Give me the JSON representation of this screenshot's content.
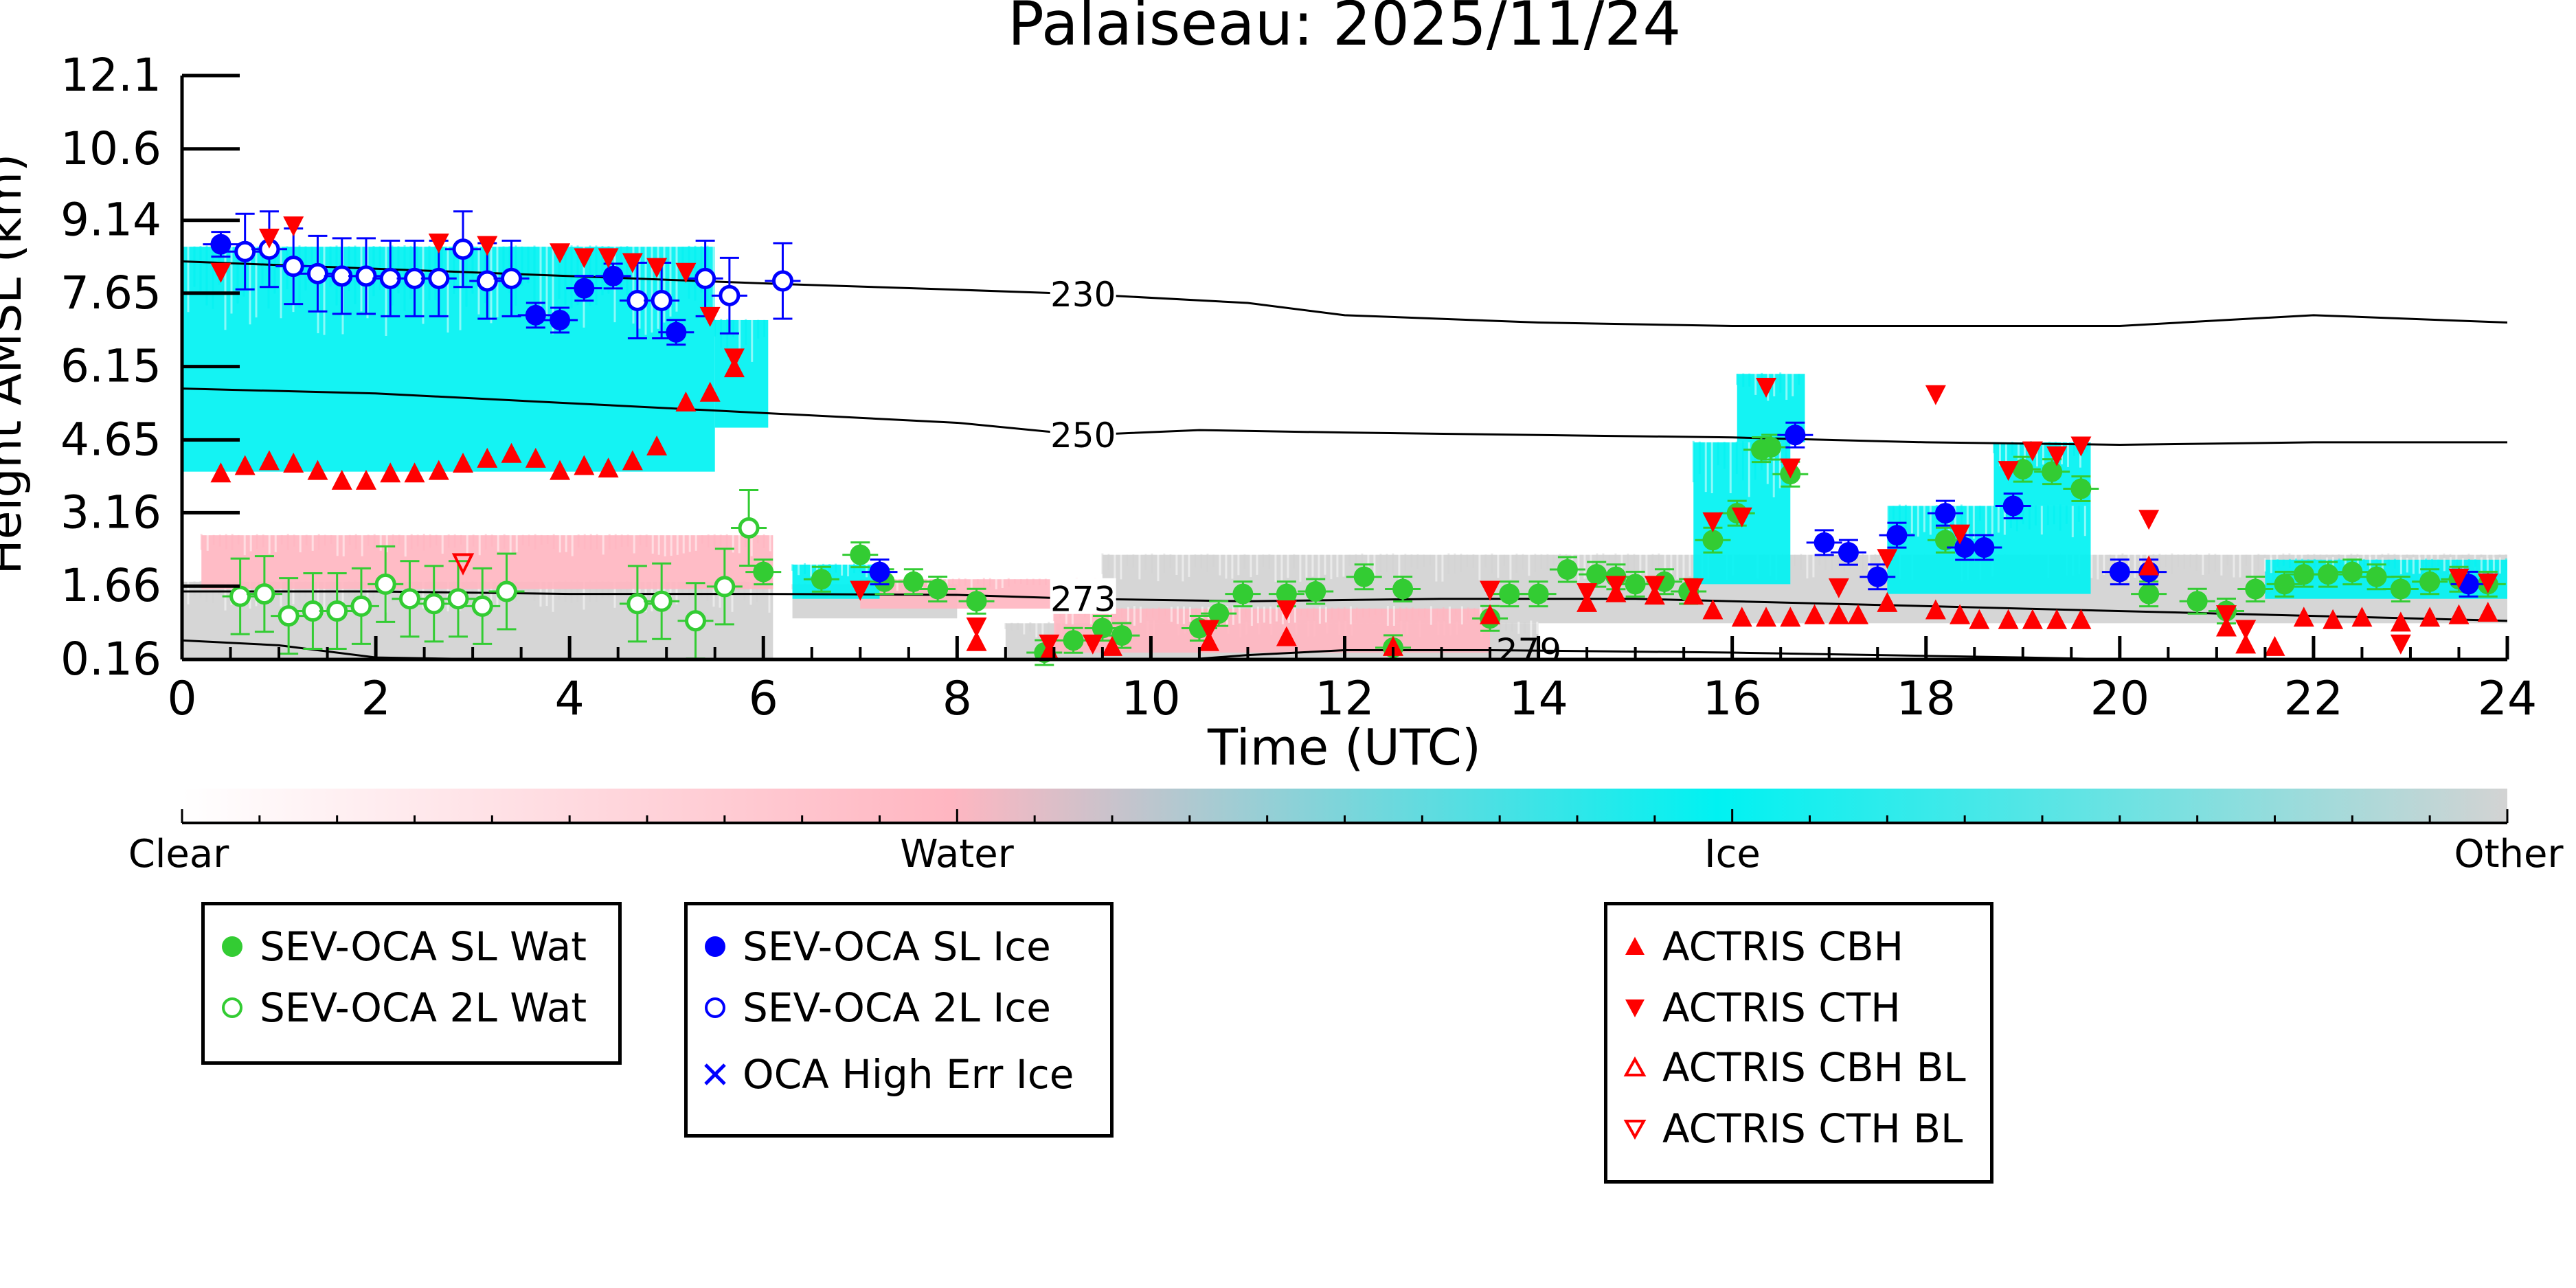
{
  "chart_data": {
    "type": "scatter",
    "title": "Palaiseau: 2025/11/24",
    "xlabel": "Time (UTC)",
    "ylabel": "Height AMSL (km)",
    "xlim": [
      0,
      24
    ],
    "ylim": [
      0.16,
      12.1
    ],
    "x_ticks": [
      "0",
      "2",
      "4",
      "6",
      "8",
      "10",
      "12",
      "14",
      "16",
      "18",
      "20",
      "22",
      "24"
    ],
    "y_ticks": [
      "0.16",
      "1.66",
      "3.16",
      "4.65",
      "6.15",
      "7.65",
      "9.14",
      "10.6",
      "12.1"
    ],
    "colorbar": {
      "labels": [
        "Clear",
        "Water",
        "Ice",
        "Other"
      ],
      "colors": {
        "Clear": "#ffffff",
        "Water": "#ffb6c1",
        "Ice": "#00f2f2",
        "Other": "#d3d3d3"
      }
    },
    "isotherms": [
      {
        "label": "230",
        "x": [
          0,
          2,
          4,
          6,
          8,
          9.3,
          11,
          12,
          14,
          16,
          18,
          20,
          22,
          24
        ],
        "y": [
          8.3,
          8.15,
          8.0,
          7.85,
          7.72,
          7.63,
          7.45,
          7.2,
          7.05,
          6.98,
          6.98,
          6.98,
          7.2,
          7.05
        ]
      },
      {
        "label": "250",
        "x": [
          0,
          2,
          4,
          6,
          8,
          9.3,
          10.5,
          12,
          14,
          16,
          18,
          20,
          22,
          24
        ],
        "y": [
          5.7,
          5.6,
          5.4,
          5.2,
          5.0,
          4.75,
          4.85,
          4.8,
          4.75,
          4.7,
          4.6,
          4.55,
          4.6,
          4.6
        ]
      },
      {
        "label": "273",
        "x": [
          0,
          2,
          4,
          6,
          8,
          9.3,
          11,
          13,
          15,
          17,
          19,
          21,
          22,
          24
        ],
        "y": [
          1.55,
          1.55,
          1.5,
          1.5,
          1.48,
          1.4,
          1.35,
          1.4,
          1.4,
          1.3,
          1.2,
          1.1,
          1.05,
          0.95
        ]
      },
      {
        "label": "279",
        "x": [
          0,
          1,
          2,
          5,
          8,
          9,
          10,
          11,
          12,
          13.5,
          16,
          19,
          20
        ],
        "y": [
          0.55,
          0.45,
          0.2,
          0.1,
          0.05,
          0.05,
          0.1,
          0.25,
          0.35,
          0.35,
          0.3,
          0.2,
          0.16
        ]
      }
    ],
    "cloud_regions": {
      "Ice": [
        {
          "x": [
            0,
            5.5
          ],
          "y": [
            4.0,
            8.6
          ]
        },
        {
          "x": [
            5.5,
            6.05
          ],
          "y": [
            4.9,
            7.1
          ]
        },
        {
          "x": [
            15.6,
            16.6
          ],
          "y": [
            1.7,
            4.6
          ]
        },
        {
          "x": [
            16.05,
            16.75
          ],
          "y": [
            4.6,
            6.0
          ]
        },
        {
          "x": [
            17.6,
            19.7
          ],
          "y": [
            1.5,
            3.3
          ]
        },
        {
          "x": [
            18.7,
            19.7
          ],
          "y": [
            3.3,
            4.6
          ]
        },
        {
          "x": [
            21.5,
            24
          ],
          "y": [
            1.4,
            2.2
          ]
        },
        {
          "x": [
            6.3,
            7.2
          ],
          "y": [
            1.4,
            2.1
          ]
        }
      ],
      "Water": [
        {
          "x": [
            0.2,
            6.1
          ],
          "y": [
            1.6,
            2.7
          ]
        },
        {
          "x": [
            7.0,
            9.5
          ],
          "y": [
            1.2,
            1.8
          ]
        },
        {
          "x": [
            9.0,
            13.5
          ],
          "y": [
            0.3,
            1.2
          ]
        }
      ],
      "Other": [
        {
          "x": [
            0,
            6.1
          ],
          "y": [
            0.16,
            1.75
          ]
        },
        {
          "x": [
            6.3,
            8.0
          ],
          "y": [
            1.0,
            1.7
          ]
        },
        {
          "x": [
            9.5,
            24
          ],
          "y": [
            0.9,
            2.3
          ]
        },
        {
          "x": [
            8.5,
            14
          ],
          "y": [
            0.16,
            0.9
          ]
        }
      ]
    },
    "series": [
      {
        "name": "SEV-OCA SL Wat",
        "x": [
          6.0,
          6.6,
          7.0,
          7.25,
          7.55,
          7.8,
          8.2,
          8.9,
          9.2,
          9.5,
          9.7,
          10.5,
          10.7,
          10.95,
          11.4,
          11.7,
          12.2,
          12.5,
          12.6,
          13.5,
          13.7,
          14.0,
          14.3,
          14.6,
          14.8,
          15.0,
          15.3,
          15.55,
          15.8,
          16.05,
          16.3,
          16.4,
          16.6,
          18.2,
          19.0,
          19.3,
          19.6,
          20.3,
          20.8,
          21.1,
          21.4,
          21.7,
          21.9,
          22.15,
          22.4,
          22.65,
          22.9,
          23.2,
          23.5,
          23.8
        ],
        "y": [
          1.95,
          1.8,
          2.3,
          1.75,
          1.75,
          1.6,
          1.35,
          0.3,
          0.55,
          0.8,
          0.65,
          0.8,
          1.1,
          1.5,
          1.5,
          1.55,
          1.85,
          0.4,
          1.6,
          1.0,
          1.5,
          1.5,
          2.0,
          1.9,
          1.85,
          1.7,
          1.75,
          1.55,
          2.6,
          3.15,
          4.45,
          4.5,
          3.95,
          2.6,
          4.05,
          4.0,
          3.65,
          1.5,
          1.35,
          1.15,
          1.6,
          1.7,
          1.9,
          1.9,
          1.95,
          1.85,
          1.6,
          1.75,
          1.8,
          1.7
        ],
        "color": "#33cc33",
        "marker": "filled-circle"
      },
      {
        "name": "SEV-OCA 2L Wat",
        "x": [
          0.6,
          0.85,
          1.1,
          1.35,
          1.6,
          1.85,
          2.1,
          2.35,
          2.6,
          2.85,
          3.1,
          3.35,
          4.7,
          4.95,
          5.3,
          5.6,
          5.85
        ],
        "y": [
          1.45,
          1.5,
          1.05,
          1.15,
          1.15,
          1.25,
          1.7,
          1.4,
          1.3,
          1.4,
          1.25,
          1.55,
          1.3,
          1.35,
          0.95,
          1.65,
          2.85
        ],
        "color": "#33cc33",
        "marker": "open-circle"
      },
      {
        "name": "SEV-OCA SL Ice",
        "x": [
          0.4,
          3.65,
          3.9,
          4.15,
          4.45,
          5.1,
          7.2,
          16.65,
          16.95,
          17.2,
          17.5,
          17.7,
          18.2,
          18.4,
          18.6,
          18.9,
          20.0,
          20.3,
          23.6
        ],
        "y": [
          8.65,
          7.2,
          7.1,
          7.75,
          8.0,
          6.85,
          1.95,
          4.75,
          2.55,
          2.35,
          1.85,
          2.7,
          3.15,
          2.45,
          2.45,
          3.3,
          1.95,
          1.95,
          1.7
        ],
        "color": "#0000ff",
        "marker": "filled-circle"
      },
      {
        "name": "SEV-OCA 2L Ice",
        "x": [
          0.65,
          0.9,
          1.15,
          1.4,
          1.65,
          1.9,
          2.15,
          2.4,
          2.65,
          2.9,
          3.15,
          3.4,
          4.7,
          4.95,
          5.4,
          5.65,
          6.2
        ],
        "y": [
          8.5,
          8.55,
          8.2,
          8.05,
          8.0,
          8.0,
          7.95,
          7.95,
          7.95,
          8.55,
          7.9,
          7.95,
          7.5,
          7.5,
          7.95,
          7.6,
          7.9
        ],
        "color": "#0000ff",
        "marker": "open-circle"
      },
      {
        "name": "OCA High Err Ice",
        "x": [],
        "y": [],
        "color": "#0000ff",
        "marker": "x"
      },
      {
        "name": "ACTRIS CBH",
        "x": [
          0.4,
          0.65,
          0.9,
          1.15,
          1.4,
          1.65,
          1.9,
          2.15,
          2.4,
          2.65,
          2.9,
          3.15,
          3.4,
          3.65,
          3.9,
          4.15,
          4.4,
          4.65,
          4.9,
          5.2,
          5.45,
          5.7,
          8.2,
          8.95,
          9.6,
          10.6,
          11.4,
          12.5,
          13.5,
          14.5,
          14.8,
          15.2,
          15.6,
          15.8,
          16.1,
          16.35,
          16.6,
          16.85,
          17.1,
          17.3,
          17.6,
          18.1,
          18.35,
          18.55,
          18.85,
          19.1,
          19.35,
          19.6,
          20.3,
          21.1,
          21.3,
          21.6,
          21.9,
          22.2,
          22.5,
          22.9,
          23.2,
          23.5,
          23.8
        ],
        "y": [
          3.95,
          4.1,
          4.2,
          4.15,
          4.0,
          3.8,
          3.8,
          3.95,
          3.95,
          4.0,
          4.15,
          4.25,
          4.35,
          4.25,
          4.0,
          4.1,
          4.05,
          4.2,
          4.5,
          5.4,
          5.6,
          6.1,
          0.5,
          0.3,
          0.4,
          0.5,
          0.6,
          0.4,
          1.05,
          1.3,
          1.5,
          1.45,
          1.45,
          1.15,
          1.0,
          1.0,
          1.0,
          1.05,
          1.05,
          1.05,
          1.3,
          1.15,
          1.05,
          0.95,
          0.95,
          0.95,
          0.95,
          0.95,
          2.05,
          0.8,
          0.45,
          0.4,
          1.0,
          0.95,
          1.0,
          0.9,
          1.0,
          1.05,
          1.1
        ],
        "color": "#ff0000",
        "marker": "filled-triangle-up"
      },
      {
        "name": "ACTRIS CTH",
        "x": [
          0.4,
          0.9,
          1.15,
          2.65,
          3.15,
          3.9,
          4.15,
          4.4,
          4.65,
          4.9,
          5.2,
          5.45,
          5.7,
          7.0,
          8.2,
          8.95,
          9.4,
          10.6,
          11.4,
          13.5,
          14.5,
          14.8,
          15.2,
          15.6,
          15.8,
          16.1,
          16.35,
          16.6,
          17.1,
          17.6,
          18.1,
          18.35,
          18.85,
          19.1,
          19.35,
          19.6,
          20.3,
          21.1,
          21.3,
          22.9,
          23.5,
          23.8
        ],
        "y": [
          8.1,
          8.8,
          9.05,
          8.7,
          8.65,
          8.5,
          8.4,
          8.4,
          8.3,
          8.2,
          8.1,
          7.2,
          6.35,
          1.6,
          0.85,
          0.5,
          0.5,
          0.8,
          1.2,
          1.6,
          1.55,
          1.7,
          1.7,
          1.65,
          3.0,
          3.1,
          5.75,
          4.1,
          1.65,
          2.25,
          5.6,
          2.75,
          4.05,
          4.45,
          4.35,
          4.55,
          3.05,
          1.1,
          0.8,
          0.5,
          1.85,
          1.75
        ],
        "color": "#ff0000",
        "marker": "filled-triangle-down"
      },
      {
        "name": "ACTRIS CBH BL",
        "x": [],
        "y": [],
        "color": "#ff0000",
        "marker": "open-triangle-up"
      },
      {
        "name": "ACTRIS CTH BL",
        "x": [
          2.9
        ],
        "y": [
          2.15
        ],
        "color": "#ff0000",
        "marker": "open-triangle-down"
      }
    ]
  },
  "legends": [
    {
      "items": [
        {
          "label": "SEV-OCA SL Wat",
          "marker": "filled-circle",
          "color": "#33cc33"
        },
        {
          "label": "SEV-OCA 2L Wat",
          "marker": "open-circle",
          "color": "#33cc33"
        }
      ]
    },
    {
      "items": [
        {
          "label": "SEV-OCA SL Ice",
          "marker": "filled-circle",
          "color": "#0000ff"
        },
        {
          "label": "SEV-OCA 2L Ice",
          "marker": "open-circle",
          "color": "#0000ff"
        },
        {
          "label": "OCA High Err Ice",
          "marker": "x",
          "color": "#0000ff"
        }
      ]
    },
    {
      "items": [
        {
          "label": "ACTRIS CBH",
          "marker": "filled-triangle-up",
          "color": "#ff0000"
        },
        {
          "label": "ACTRIS CTH",
          "marker": "filled-triangle-down",
          "color": "#ff0000"
        },
        {
          "label": "ACTRIS CBH BL",
          "marker": "open-triangle-up",
          "color": "#ff0000"
        },
        {
          "label": "ACTRIS CTH BL",
          "marker": "open-triangle-down",
          "color": "#ff0000"
        }
      ]
    }
  ]
}
